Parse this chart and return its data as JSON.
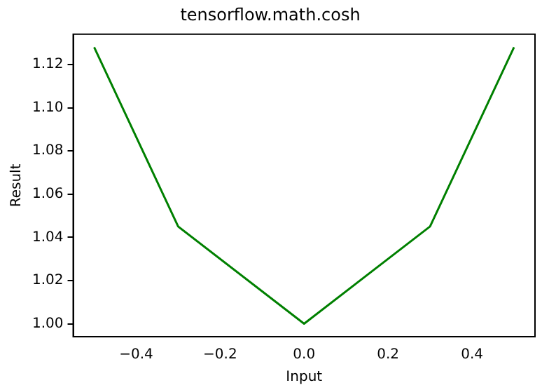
{
  "chart_data": {
    "type": "line",
    "title": "tensorflow.math.cosh",
    "xlabel": "Input",
    "ylabel": "Result",
    "x": [
      -0.5,
      -0.3,
      0,
      0.3,
      0.5
    ],
    "series": [
      {
        "color": "#008000",
        "values": [
          1.128,
          1.045,
          1.0,
          1.045,
          1.128
        ]
      }
    ],
    "xlim": [
      -0.55,
      0.55
    ],
    "xticks": [
      {
        "value": -0.4,
        "label": "−0.4"
      },
      {
        "value": -0.2,
        "label": "−0.2"
      },
      {
        "value": 0,
        "label": "0.0"
      },
      {
        "value": 0.2,
        "label": "0.2"
      },
      {
        "value": 0.4,
        "label": "0.4"
      }
    ],
    "ylim": [
      0.994,
      1.134
    ],
    "yticks": [
      {
        "value": 1.0,
        "label": "1.00"
      },
      {
        "value": 1.02,
        "label": "1.02"
      },
      {
        "value": 1.04,
        "label": "1.04"
      },
      {
        "value": 1.06,
        "label": "1.06"
      },
      {
        "value": 1.08,
        "label": "1.08"
      },
      {
        "value": 1.1,
        "label": "1.10"
      },
      {
        "value": 1.12,
        "label": "1.12"
      }
    ],
    "grid": false,
    "legend": false,
    "marker": "none",
    "line_style": "solid"
  }
}
